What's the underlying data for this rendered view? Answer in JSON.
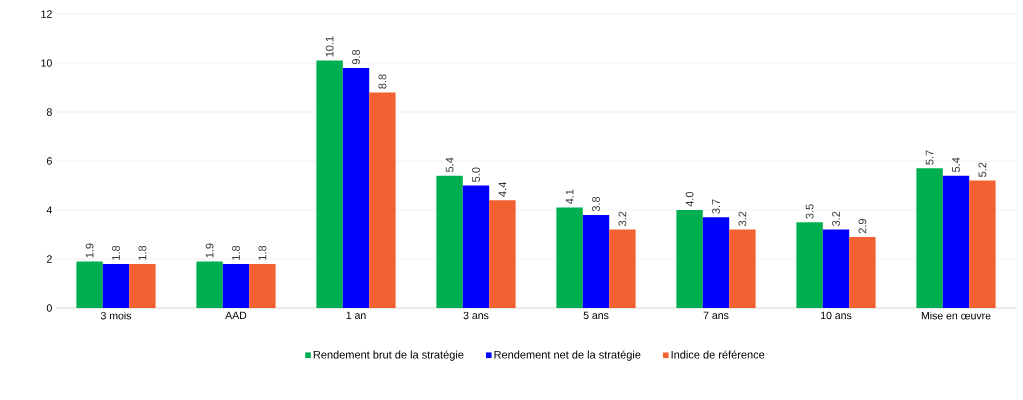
{
  "chart_data": {
    "type": "bar",
    "categories": [
      "3 mois",
      "AAD",
      "1 an",
      "3 ans",
      "5 ans",
      "7 ans",
      "10 ans",
      "Mise en œuvre"
    ],
    "series": [
      {
        "name": "Rendement brut de la stratégie",
        "color": "#00b050",
        "values": [
          1.9,
          1.9,
          10.1,
          5.4,
          4.1,
          4.0,
          3.5,
          5.7
        ],
        "value_labels": [
          "1.9",
          "1.9",
          "10.1",
          "5.4",
          "4.1",
          "4.0",
          "3.5",
          "5.7"
        ]
      },
      {
        "name": "Rendement net de la stratégie",
        "color": "#0000ff",
        "values": [
          1.8,
          1.8,
          9.8,
          5.0,
          3.8,
          3.7,
          3.2,
          5.4
        ],
        "value_labels": [
          "1.8",
          "1.8",
          "9.8",
          "5.0",
          "3.8",
          "3.7",
          "3.2",
          "5.4"
        ]
      },
      {
        "name": "Indice de référence",
        "color": "#f26131",
        "values": [
          1.8,
          1.8,
          8.8,
          4.4,
          3.2,
          3.2,
          2.9,
          5.2
        ],
        "value_labels": [
          "1.8",
          "1.8",
          "8.8",
          "4.4",
          "3.2",
          "3.2",
          "2.9",
          "5.2"
        ]
      }
    ],
    "ylim": [
      0,
      12
    ],
    "yticks": [
      0,
      2,
      4,
      6,
      8,
      10,
      12
    ],
    "grid": "y",
    "legend": "bottom"
  }
}
